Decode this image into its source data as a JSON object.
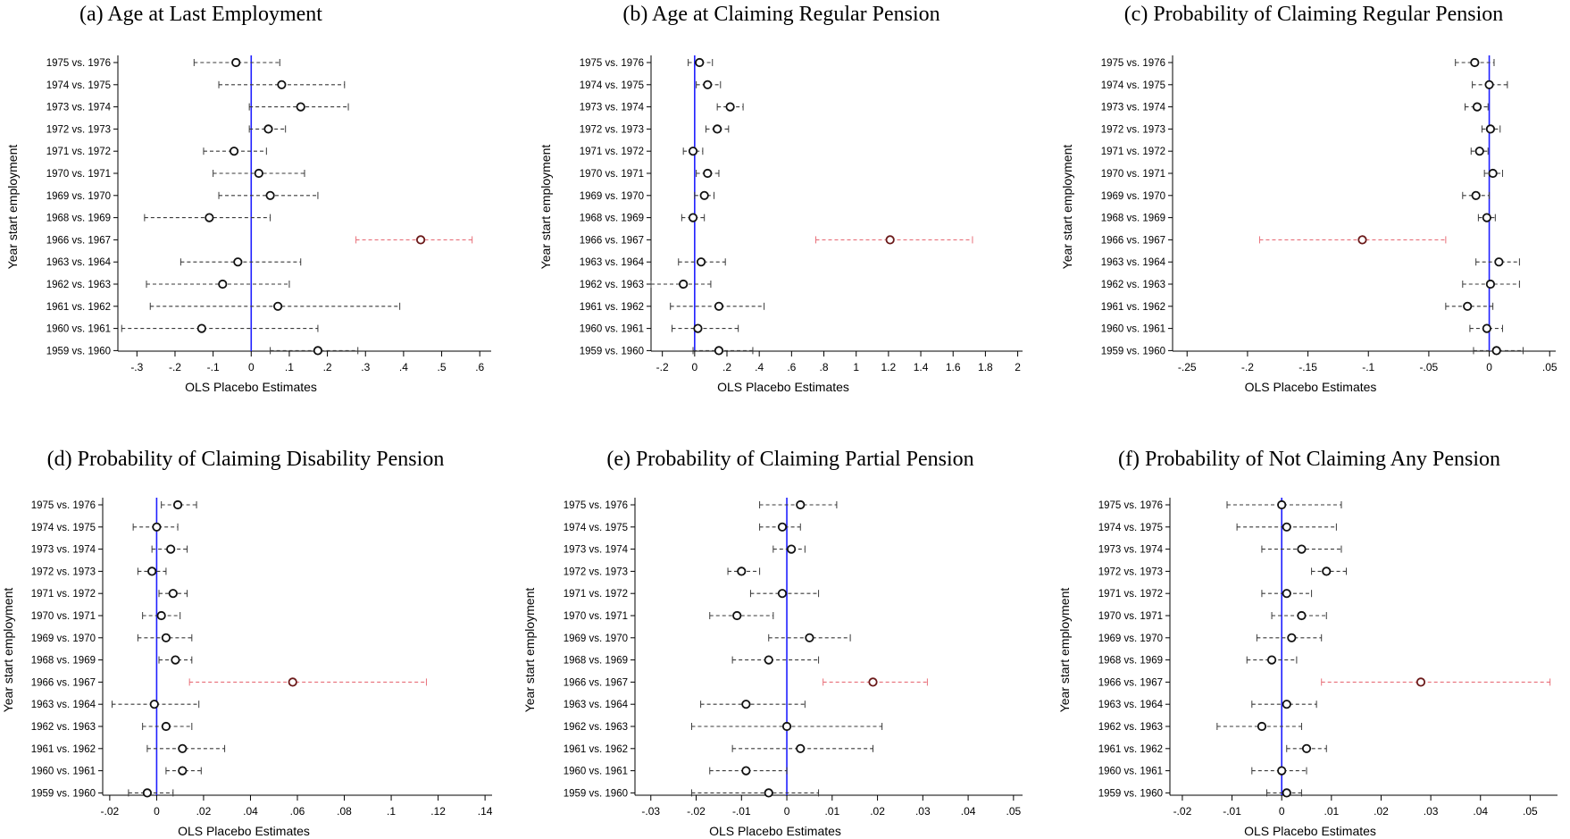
{
  "chart_data": [
    {
      "type": "scatter",
      "panel": "(a)",
      "title": "(a) Age at Last Employment",
      "xlabel": "OLS Placebo Estimates",
      "ylabel": "Year start employment",
      "xlim": [
        -0.35,
        0.63
      ],
      "xticks": [
        -0.3,
        -0.2,
        -0.1,
        0,
        0.1,
        0.2,
        0.3,
        0.4,
        0.5,
        0.6
      ],
      "xtick_labels": [
        "-.3",
        "-.2",
        "-.1",
        "0",
        ".1",
        ".2",
        ".3",
        ".4",
        ".5",
        ".6"
      ],
      "categories": [
        "1975 vs. 1976",
        "1974 vs. 1975",
        "1973 vs. 1974",
        "1972 vs. 1973",
        "1971 vs. 1972",
        "1970 vs. 1971",
        "1969 vs. 1970",
        "1968 vs. 1969",
        "1966 vs. 1967",
        "1963 vs. 1964",
        "1962 vs. 1963",
        "1961 vs. 1962",
        "1960 vs. 1961",
        "1959 vs. 1960"
      ],
      "estimates": [
        -0.04,
        0.08,
        0.13,
        0.045,
        -0.045,
        0.02,
        0.05,
        -0.11,
        0.445,
        -0.035,
        -0.075,
        0.07,
        -0.13,
        0.175
      ],
      "ci_low": [
        -0.15,
        -0.085,
        -0.005,
        -0.005,
        -0.125,
        -0.1,
        -0.085,
        -0.28,
        0.275,
        -0.185,
        -0.275,
        -0.265,
        -0.34,
        0.05
      ],
      "ci_high": [
        0.075,
        0.245,
        0.255,
        0.09,
        0.04,
        0.14,
        0.175,
        0.05,
        0.58,
        0.13,
        0.1,
        0.39,
        0.175,
        0.28
      ],
      "highlight": "1966 vs. 1967"
    },
    {
      "type": "scatter",
      "panel": "(b)",
      "title": "(b) Age at Claiming Regular Pension",
      "xlabel": "OLS Placebo Estimates",
      "ylabel": "Year start employment",
      "xlim": [
        -0.27,
        2.03
      ],
      "xticks": [
        -0.2,
        0,
        0.2,
        0.4,
        0.6,
        0.8,
        1,
        1.2,
        1.4,
        1.6,
        1.8,
        2
      ],
      "xtick_labels": [
        "-.2",
        "0",
        ".2",
        ".4",
        ".6",
        ".8",
        "1",
        "1.2",
        "1.4",
        "1.6",
        "1.8",
        "2"
      ],
      "categories": [
        "1975 vs. 1976",
        "1974 vs. 1975",
        "1973 vs. 1974",
        "1972 vs. 1973",
        "1971 vs. 1972",
        "1970 vs. 1971",
        "1969 vs. 1970",
        "1968 vs. 1969",
        "1966 vs. 1967",
        "1963 vs. 1964",
        "1962 vs. 1963",
        "1961 vs. 1962",
        "1960 vs. 1961",
        "1959 vs. 1960"
      ],
      "estimates": [
        0.03,
        0.08,
        0.22,
        0.14,
        -0.01,
        0.08,
        0.06,
        -0.01,
        1.21,
        0.04,
        -0.07,
        0.15,
        0.02,
        0.15
      ],
      "ci_low": [
        -0.04,
        0.01,
        0.14,
        0.07,
        -0.07,
        0.01,
        0,
        -0.08,
        0.75,
        -0.1,
        -0.27,
        -0.15,
        -0.14,
        -0.01
      ],
      "ci_high": [
        0.11,
        0.16,
        0.3,
        0.21,
        0.05,
        0.15,
        0.12,
        0.06,
        1.72,
        0.19,
        0.1,
        0.43,
        0.27,
        0.36
      ],
      "highlight": "1966 vs. 1967"
    },
    {
      "type": "scatter",
      "panel": "(c)",
      "title": "(c) Probability of Claiming Regular Pension",
      "xlabel": "OLS Placebo Estimates",
      "ylabel": "Year start employment",
      "xlim": [
        -0.262,
        0.055
      ],
      "xticks": [
        -0.25,
        -0.2,
        -0.15,
        -0.1,
        -0.05,
        0,
        0.05
      ],
      "xtick_labels": [
        "-.25",
        "-.2",
        "-.15",
        "-.1",
        "-.05",
        "0",
        ".05"
      ],
      "categories": [
        "1975 vs. 1976",
        "1974 vs. 1975",
        "1973 vs. 1974",
        "1972 vs. 1973",
        "1971 vs. 1972",
        "1970 vs. 1971",
        "1969 vs. 1970",
        "1968 vs. 1969",
        "1966 vs. 1967",
        "1963 vs. 1964",
        "1962 vs. 1963",
        "1961 vs. 1962",
        "1960 vs. 1961",
        "1959 vs. 1960"
      ],
      "estimates": [
        -0.012,
        0,
        -0.01,
        0.001,
        -0.008,
        0.003,
        -0.011,
        -0.002,
        -0.105,
        0.008,
        0.001,
        -0.018,
        -0.002,
        0.006
      ],
      "ci_low": [
        -0.028,
        -0.014,
        -0.02,
        -0.006,
        -0.015,
        -0.004,
        -0.022,
        -0.009,
        -0.19,
        -0.011,
        -0.022,
        -0.036,
        -0.016,
        -0.013
      ],
      "ci_high": [
        0.004,
        0.015,
        -0.001,
        0.009,
        -0.001,
        0.011,
        0,
        0.005,
        -0.036,
        0.025,
        0.025,
        0.003,
        0.011,
        0.028
      ],
      "highlight": "1966 vs. 1967"
    },
    {
      "type": "scatter",
      "panel": "(d)",
      "title": "(d) Probability of Claiming Disability Pension",
      "xlabel": "OLS Placebo Estimates",
      "ylabel": "Year start employment",
      "xlim": [
        -0.023,
        0.143
      ],
      "xticks": [
        -0.02,
        0,
        0.02,
        0.04,
        0.06,
        0.08,
        0.1,
        0.12,
        0.14
      ],
      "xtick_labels": [
        "-.02",
        "0",
        ".02",
        ".04",
        ".06",
        ".08",
        ".1",
        ".12",
        ".14"
      ],
      "categories": [
        "1975 vs. 1976",
        "1974 vs. 1975",
        "1973 vs. 1974",
        "1972 vs. 1973",
        "1971 vs. 1972",
        "1970 vs. 1971",
        "1969 vs. 1970",
        "1968 vs. 1969",
        "1966 vs. 1967",
        "1963 vs. 1964",
        "1962 vs. 1963",
        "1961 vs. 1962",
        "1960 vs. 1961",
        "1959 vs. 1960"
      ],
      "estimates": [
        0.009,
        0,
        0.006,
        -0.002,
        0.007,
        0.002,
        0.004,
        0.008,
        0.058,
        -0.001,
        0.004,
        0.011,
        0.011,
        -0.004
      ],
      "ci_low": [
        0.002,
        -0.01,
        -0.002,
        -0.008,
        0.001,
        -0.006,
        -0.008,
        0.001,
        0.014,
        -0.019,
        -0.006,
        -0.004,
        0.004,
        -0.012
      ],
      "ci_high": [
        0.017,
        0.009,
        0.013,
        0.004,
        0.013,
        0.01,
        0.015,
        0.015,
        0.115,
        0.018,
        0.015,
        0.029,
        0.019,
        0.007
      ],
      "highlight": "1966 vs. 1967"
    },
    {
      "type": "scatter",
      "panel": "(e)",
      "title": "(e) Probability of Claiming Partial Pension",
      "xlabel": "OLS Placebo Estimates",
      "ylabel": "Year start employment",
      "xlim": [
        -0.0335,
        0.052
      ],
      "xticks": [
        -0.03,
        -0.02,
        -0.01,
        0,
        0.01,
        0.02,
        0.03,
        0.04,
        0.05
      ],
      "xtick_labels": [
        "-.03",
        "-.02",
        "-.01",
        "0",
        ".01",
        ".02",
        ".03",
        ".04",
        ".05"
      ],
      "categories": [
        "1975 vs. 1976",
        "1974 vs. 1975",
        "1973 vs. 1974",
        "1972 vs. 1973",
        "1971 vs. 1972",
        "1970 vs. 1971",
        "1969 vs. 1970",
        "1968 vs. 1969",
        "1966 vs. 1967",
        "1963 vs. 1964",
        "1962 vs. 1963",
        "1961 vs. 1962",
        "1960 vs. 1961",
        "1959 vs. 1960"
      ],
      "estimates": [
        0.003,
        -0.001,
        0.001,
        -0.01,
        -0.001,
        -0.011,
        0.005,
        -0.004,
        0.019,
        -0.009,
        0,
        0.003,
        -0.009,
        -0.004
      ],
      "ci_low": [
        -0.006,
        -0.006,
        -0.003,
        -0.013,
        -0.008,
        -0.017,
        -0.004,
        -0.012,
        0.008,
        -0.019,
        -0.021,
        -0.012,
        -0.017,
        -0.021
      ],
      "ci_high": [
        0.011,
        0.003,
        0.004,
        -0.006,
        0.007,
        -0.003,
        0.014,
        0.007,
        0.031,
        0.004,
        0.021,
        0.019,
        0,
        0.007
      ],
      "highlight": "1966 vs. 1967"
    },
    {
      "type": "scatter",
      "panel": "(f)",
      "title": "(f) Probability of Not Claiming Any Pension",
      "xlabel": "OLS Placebo Estimates",
      "ylabel": "Year start employment",
      "xlim": [
        -0.0225,
        0.0555
      ],
      "xticks": [
        -0.02,
        -0.01,
        0,
        0.01,
        0.02,
        0.03,
        0.04,
        0.05
      ],
      "xtick_labels": [
        "-.02",
        "-.01",
        "0",
        ".01",
        ".02",
        ".03",
        ".04",
        ".05"
      ],
      "categories": [
        "1975 vs. 1976",
        "1974 vs. 1975",
        "1973 vs. 1974",
        "1972 vs. 1973",
        "1971 vs. 1972",
        "1970 vs. 1971",
        "1969 vs. 1970",
        "1968 vs. 1969",
        "1966 vs. 1967",
        "1963 vs. 1964",
        "1962 vs. 1963",
        "1961 vs. 1962",
        "1960 vs. 1961",
        "1959 vs. 1960"
      ],
      "estimates": [
        0,
        0.001,
        0.004,
        0.009,
        0.001,
        0.004,
        0.002,
        -0.002,
        0.028,
        0.001,
        -0.004,
        0.005,
        0,
        0.001
      ],
      "ci_low": [
        -0.011,
        -0.009,
        -0.004,
        0.006,
        -0.004,
        -0.002,
        -0.005,
        -0.007,
        0.008,
        -0.006,
        -0.013,
        0.001,
        -0.006,
        -0.003
      ],
      "ci_high": [
        0.012,
        0.011,
        0.012,
        0.013,
        0.006,
        0.009,
        0.008,
        0.003,
        0.054,
        0.007,
        0.004,
        0.009,
        0.005,
        0.004
      ],
      "highlight": "1966 vs. 1967"
    }
  ],
  "colors": {
    "zero_line": "#1f1fff",
    "ci_normal": "#3a3a3a",
    "ci_highlight": "#e8707a",
    "marker_edge": "#111111",
    "marker_highlight_edge": "#6b1a1a",
    "axis": "#000000"
  }
}
